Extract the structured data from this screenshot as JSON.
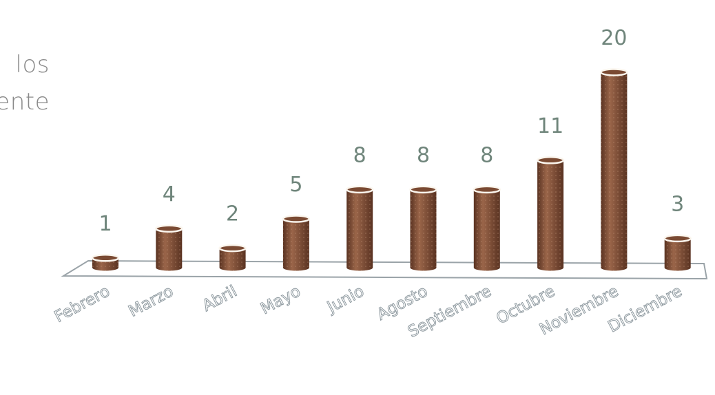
{
  "side_text": [
    "los",
    "ente"
  ],
  "chart_data": {
    "type": "bar",
    "title": "",
    "xlabel": "",
    "ylabel": "",
    "categories": [
      "Febrero",
      "Marzo",
      "Abril",
      "Mayo",
      "Junio",
      "Agosto",
      "Septiembre",
      "Octubre",
      "Noviembre",
      "Diciembre"
    ],
    "values": [
      1,
      4,
      2,
      5,
      8,
      8,
      8,
      11,
      20,
      3
    ],
    "value_labels": [
      "1",
      "4",
      "2",
      "5",
      "8",
      "8",
      "8",
      "11",
      "20",
      "3"
    ],
    "ylim": [
      0,
      20
    ],
    "grid": false,
    "legend": "none",
    "style": "3d-cylinder",
    "colors": {
      "bar": "#7a4a33",
      "bar_dark": "#5a3322",
      "bar_light": "#9a6549",
      "rim": "#fbf6ee",
      "floor_edge": "#9aa3a8",
      "value_text": "#6f857b"
    }
  }
}
